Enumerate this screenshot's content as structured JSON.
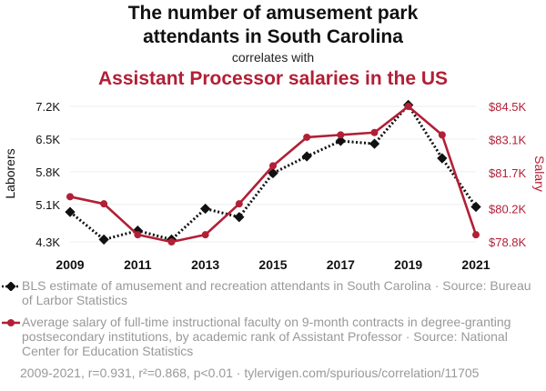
{
  "chart_data": {
    "type": "line",
    "title": "The number of amusement park attendants in South Carolina",
    "title_lines": [
      "The number of amusement park",
      "attendants in South Carolina"
    ],
    "subtitle": "correlates with",
    "title2": "Assistant Processor salaries in the US",
    "x": [
      2009,
      2010,
      2011,
      2012,
      2013,
      2014,
      2015,
      2016,
      2017,
      2018,
      2019,
      2020,
      2021
    ],
    "x_ticks": [
      "2009",
      "2011",
      "2013",
      "2015",
      "2017",
      "2019",
      "2021"
    ],
    "series": [
      {
        "name": "BLS estimate of amusement and recreation attendants in South Carolina · Source: Bureau of Larbor Statistics",
        "axis": "left",
        "color": "#111111",
        "style": "dotted",
        "marker": "diamond",
        "values": [
          4940,
          4350,
          4540,
          4350,
          5010,
          4830,
          5770,
          6130,
          6460,
          6400,
          7230,
          6090,
          5050
        ]
      },
      {
        "name": "Average salary of full-time instructional faculty on 9-month contracts in degree-granting postsecondary institutions, by academic rank of Assistant Professor · Source: National Center for Education Statistics",
        "axis": "right",
        "color": "#b21f36",
        "style": "solid",
        "marker": "circle",
        "values": [
          80700,
          80400,
          79100,
          78800,
          79100,
          80400,
          82000,
          83200,
          83300,
          83400,
          84500,
          83300,
          79100
        ]
      }
    ],
    "y_left": {
      "label": "Laborers",
      "ticks": [
        "4.3K",
        "5.1K",
        "5.8K",
        "6.5K",
        "7.2K"
      ],
      "tick_values": [
        4300,
        5100,
        5800,
        6500,
        7200
      ],
      "ylim": [
        4300,
        7200
      ]
    },
    "y_right": {
      "label": "Salary",
      "ticks": [
        "$78.8K",
        "$80.2K",
        "$81.7K",
        "$83.1K",
        "$84.5K"
      ],
      "tick_values": [
        78800,
        80200,
        81700,
        83100,
        84500
      ],
      "ylim": [
        78800,
        84500
      ]
    },
    "legend": [
      "BLS estimate of amusement and recreation attendants in South Carolina · Source: Bureau of Larbor Statistics",
      "Average salary of full-time instructional faculty on 9-month contracts in degree-granting postsecondary institutions, by academic rank of Assistant Professor · Source: National Center for Education Statistics"
    ],
    "footer": "2009-2021, r=0.931, r²=0.868, p<0.01 · tylervigen.com/spurious/correlation/11705"
  }
}
